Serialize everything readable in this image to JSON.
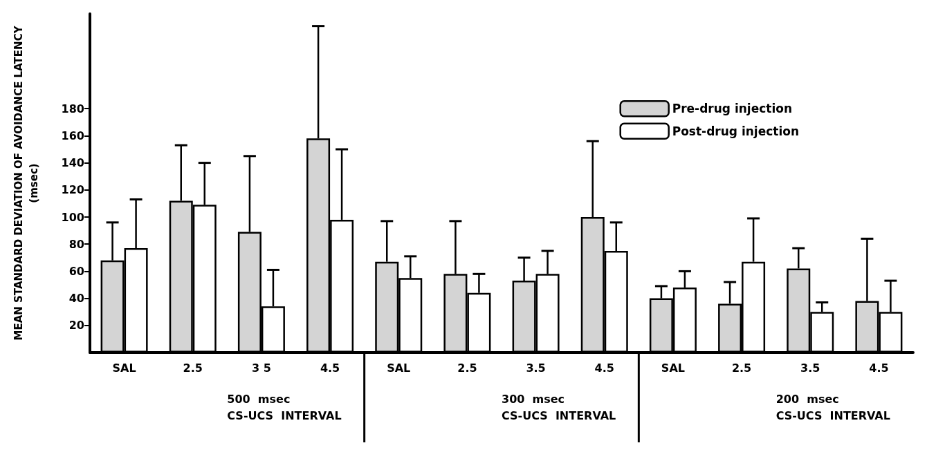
{
  "chart_data": {
    "type": "bar",
    "ylabel": "MEAN STANDARD DEVIATION OF AVOIDANCE LATENCY\n(msec)",
    "categories": [
      "SAL",
      "2.5",
      "3 5",
      "4.5",
      "SAL",
      "2.5",
      "3.5",
      "4.5",
      "SAL",
      "2.5",
      "3.5",
      "4.5"
    ],
    "series": [
      {
        "name": "Pre-drug injection",
        "color": "#d4d4d4",
        "values": [
          68,
          112,
          89,
          158,
          67,
          58,
          53,
          100,
          40,
          36,
          62,
          38
        ],
        "errors": [
          [
            68,
            96
          ],
          [
            112,
            153
          ],
          [
            89,
            145
          ],
          [
            158,
            241
          ],
          [
            67,
            97
          ],
          [
            58,
            97
          ],
          [
            53,
            70
          ],
          [
            100,
            156
          ],
          [
            40,
            49
          ],
          [
            36,
            52
          ],
          [
            62,
            77
          ],
          [
            38,
            84
          ]
        ]
      },
      {
        "name": "Post-drug injection",
        "color": "#ffffff",
        "values": [
          77,
          109,
          34,
          98,
          55,
          44,
          58,
          75,
          48,
          67,
          30,
          30
        ],
        "errors": [
          [
            77,
            113
          ],
          [
            109,
            140
          ],
          [
            34,
            61
          ],
          [
            98,
            150
          ],
          [
            55,
            71
          ],
          [
            44,
            58
          ],
          [
            58,
            75
          ],
          [
            75,
            96
          ],
          [
            48,
            60
          ],
          [
            67,
            99
          ],
          [
            30,
            37
          ],
          [
            30,
            53
          ]
        ]
      }
    ],
    "ylim": [
      0,
      250
    ],
    "yticks": [
      20,
      40,
      60,
      80,
      100,
      120,
      140,
      160,
      180
    ],
    "grid": false,
    "legend": "top right",
    "annotations": [
      "500  msec\nCS-UCS  INTERVAL",
      "300  msec\nCS-UCS  INTERVAL",
      "200  msec\nCS-UCS  INTERVAL"
    ]
  }
}
